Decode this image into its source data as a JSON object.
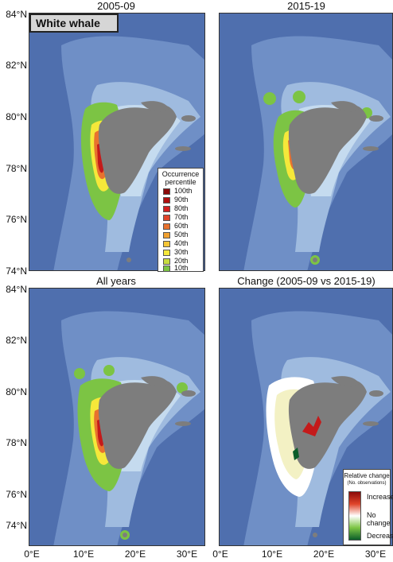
{
  "panel_titles": [
    "2005-09",
    "2015-19",
    "All years",
    "Change (2005-09 vs 2015-19)"
  ],
  "species_label": "White whale",
  "lat_labels": [
    "84°N",
    "82°N",
    "80°N",
    "78°N",
    "76°N",
    "74°N"
  ],
  "lon_labels": [
    "0°E",
    "10°E",
    "20°E",
    "30°E"
  ],
  "occurrence_legend": {
    "title_line1": "Occurrence",
    "title_line2": "percentile",
    "items": [
      {
        "label": "100th",
        "color": "#8b0a0a"
      },
      {
        "label": "90th",
        "color": "#b01010"
      },
      {
        "label": "80th",
        "color": "#d42020"
      },
      {
        "label": "70th",
        "color": "#e0442a"
      },
      {
        "label": "60th",
        "color": "#e8722e"
      },
      {
        "label": "50th",
        "color": "#f0a030"
      },
      {
        "label": "40th",
        "color": "#f4c536"
      },
      {
        "label": "30th",
        "color": "#f5e83a"
      },
      {
        "label": "20th",
        "color": "#c8dc40"
      },
      {
        "label": "10th",
        "color": "#7cc444"
      }
    ]
  },
  "change_legend": {
    "title": "Relative change",
    "subtitle": "(No. observations)",
    "increase": "Increase",
    "no_change": "No change",
    "decrease": "Decrease"
  },
  "colors": {
    "ocean_deep": "#4f6fae",
    "ocean_mid": "#6f8fc6",
    "shelf": "#9fbbdf",
    "shallow": "#c5dbef",
    "land": "#7d7d7d",
    "occurrence_edge": "#7cc444",
    "change_none": "#ffffff",
    "change_increase": "#c41a1a",
    "change_decrease": "#0b5e2a"
  }
}
